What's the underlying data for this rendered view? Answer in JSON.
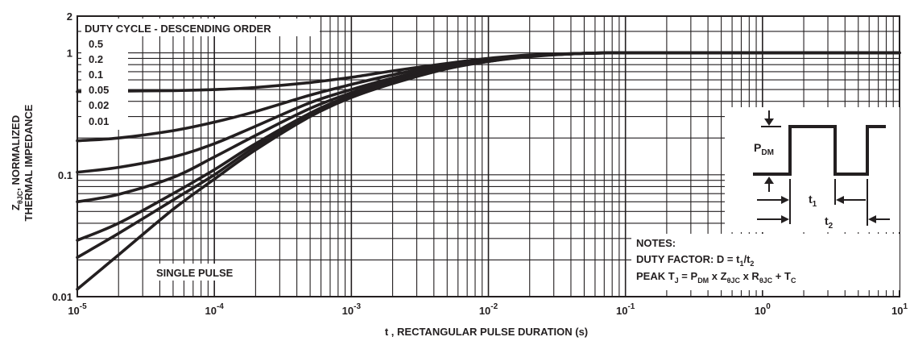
{
  "chart_data": {
    "type": "line",
    "x_scale": "log",
    "y_scale": "log",
    "xlim": [
      1e-05,
      10
    ],
    "ylim": [
      0.01,
      2
    ],
    "grid": true,
    "xlabel": "t , RECTANGULAR PULSE DURATION (s)",
    "ylabel": {
      "line1_pre": "Z",
      "line1_sub": "θJC",
      "line1_post": ", NORMALIZED",
      "line2": "THERMAL IMPEDANCE"
    },
    "x_ticks": [
      {
        "value": 1e-05,
        "base": "10",
        "exp": "-5"
      },
      {
        "value": 0.0001,
        "base": "10",
        "exp": "-4"
      },
      {
        "value": 0.001,
        "base": "10",
        "exp": "-3"
      },
      {
        "value": 0.01,
        "base": "10",
        "exp": "-2"
      },
      {
        "value": 0.1,
        "base": "10",
        "exp": "-1"
      },
      {
        "value": 1,
        "base": "10",
        "exp": "0"
      },
      {
        "value": 10,
        "base": "10",
        "exp": "1"
      }
    ],
    "y_ticks": [
      {
        "value": 2,
        "label": "2"
      },
      {
        "value": 1,
        "label": "1"
      },
      {
        "value": 0.1,
        "label": "0.1"
      },
      {
        "value": 0.01,
        "label": "0.01"
      }
    ],
    "legend_title": "DUTY CYCLE - DESCENDING ORDER",
    "legend_items": [
      "0.5",
      "0.2",
      "0.1",
      "0.05",
      "0.02",
      "0.01"
    ],
    "single_pulse_label": "SINGLE PULSE",
    "series": [
      {
        "name": "0.5",
        "x": [
          1e-05,
          2e-05,
          5e-05,
          0.0001,
          0.0002,
          0.0005,
          0.001,
          0.002,
          0.005,
          0.01,
          0.02,
          0.05,
          0.1,
          1,
          10
        ],
        "y": [
          0.48,
          0.485,
          0.49,
          0.5,
          0.52,
          0.57,
          0.63,
          0.71,
          0.82,
          0.9,
          0.96,
          0.99,
          1.0,
          1.0,
          1.0
        ]
      },
      {
        "name": "0.2",
        "x": [
          1e-05,
          2e-05,
          5e-05,
          0.0001,
          0.0002,
          0.0005,
          0.001,
          0.002,
          0.005,
          0.01,
          0.02,
          0.05,
          0.1,
          1,
          10
        ],
        "y": [
          0.19,
          0.2,
          0.23,
          0.27,
          0.33,
          0.45,
          0.55,
          0.66,
          0.8,
          0.88,
          0.95,
          0.99,
          1.0,
          1.0,
          1.0
        ]
      },
      {
        "name": "0.1",
        "x": [
          1e-05,
          2e-05,
          5e-05,
          0.0001,
          0.0002,
          0.0005,
          0.001,
          0.002,
          0.005,
          0.01,
          0.02,
          0.05,
          0.1,
          1,
          10
        ],
        "y": [
          0.105,
          0.115,
          0.14,
          0.18,
          0.25,
          0.39,
          0.5,
          0.62,
          0.78,
          0.87,
          0.94,
          0.99,
          1.0,
          1.0,
          1.0
        ]
      },
      {
        "name": "0.05",
        "x": [
          1e-05,
          2e-05,
          5e-05,
          0.0001,
          0.0002,
          0.0005,
          0.001,
          0.002,
          0.005,
          0.01,
          0.02,
          0.05,
          0.1,
          1,
          10
        ],
        "y": [
          0.06,
          0.069,
          0.095,
          0.14,
          0.21,
          0.35,
          0.47,
          0.6,
          0.77,
          0.86,
          0.94,
          0.99,
          1.0,
          1.0,
          1.0
        ]
      },
      {
        "name": "0.02",
        "x": [
          1e-05,
          2e-05,
          5e-05,
          0.0001,
          0.0002,
          0.0005,
          0.001,
          0.002,
          0.005,
          0.01,
          0.02,
          0.05,
          0.1,
          1,
          10
        ],
        "y": [
          0.029,
          0.04,
          0.07,
          0.11,
          0.18,
          0.32,
          0.45,
          0.58,
          0.76,
          0.86,
          0.94,
          0.99,
          1.0,
          1.0,
          1.0
        ]
      },
      {
        "name": "0.01",
        "x": [
          1e-05,
          2e-05,
          5e-05,
          0.0001,
          0.0002,
          0.0005,
          0.001,
          0.002,
          0.005,
          0.01,
          0.02,
          0.05,
          0.1,
          1,
          10
        ],
        "y": [
          0.021,
          0.033,
          0.062,
          0.1,
          0.17,
          0.31,
          0.44,
          0.57,
          0.75,
          0.85,
          0.94,
          0.99,
          1.0,
          1.0,
          1.0
        ]
      },
      {
        "name": "SINGLE PULSE",
        "x": [
          1e-05,
          2e-05,
          5e-05,
          0.0001,
          0.0002,
          0.0005,
          0.001,
          0.002,
          0.005,
          0.01,
          0.02,
          0.05,
          0.1,
          1,
          10
        ],
        "y": [
          0.0115,
          0.022,
          0.052,
          0.092,
          0.16,
          0.3,
          0.43,
          0.56,
          0.74,
          0.85,
          0.93,
          0.99,
          1.0,
          1.0,
          1.0
        ]
      }
    ],
    "pulse_diagram": {
      "pdm_main": "P",
      "pdm_sub": "DM",
      "t1_main": "t",
      "t1_sub": "1",
      "t2_main": "t",
      "t2_sub": "2"
    },
    "notes": {
      "title": "NOTES:",
      "duty_pre": "DUTY FACTOR: D = t",
      "duty_sub1": "1",
      "duty_mid": "/t",
      "duty_sub2": "2",
      "peak_1": "PEAK T",
      "peak_1_sub": "J",
      "peak_2": " = P",
      "peak_2_sub": "DM",
      "peak_3": " x Z",
      "peak_3_sub": "θJC",
      "peak_4": " x R",
      "peak_4_sub": "θJC",
      "peak_5": " + T",
      "peak_5_sub": "C"
    },
    "colors": {
      "ink": "#231f20",
      "background": "#ffffff"
    }
  }
}
